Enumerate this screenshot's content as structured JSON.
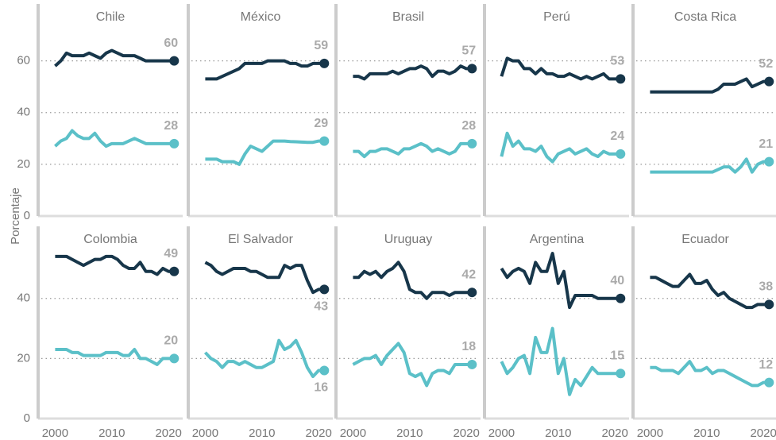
{
  "y_label": "Porcentaje",
  "chart_data": [
    {
      "type": "line",
      "title": "Chile",
      "x": [
        2000,
        2001,
        2002,
        2003,
        2004,
        2005,
        2006,
        2007,
        2008,
        2009,
        2010,
        2011,
        2012,
        2013,
        2014,
        2015,
        2016,
        2017,
        2018,
        2019,
        2020,
        2021
      ],
      "ylim": [
        0,
        82
      ],
      "yticks": [
        0,
        20,
        40,
        60
      ],
      "xlim": [
        1997,
        2022.5
      ],
      "series": [
        {
          "color": "#17364a",
          "values": [
            58,
            60,
            63,
            62,
            62,
            62,
            63,
            62,
            61,
            63,
            64,
            63,
            62,
            62,
            62,
            61,
            60,
            60,
            60,
            60,
            60,
            60
          ]
        },
        {
          "color": "#5bc0c8",
          "values": [
            27,
            29,
            30,
            33,
            31,
            30,
            30,
            32,
            29,
            27,
            28,
            28,
            28,
            29,
            30,
            29,
            28,
            28,
            28,
            28,
            28,
            28
          ]
        }
      ]
    },
    {
      "type": "line",
      "title": "México",
      "x": [
        2000,
        2001,
        2002,
        2003,
        2004,
        2005,
        2006,
        2007,
        2008,
        2009,
        2010,
        2011,
        2012,
        2013,
        2014,
        2015,
        2016,
        2017,
        2018,
        2019,
        2020,
        2021
      ],
      "ylim": [
        0,
        82
      ],
      "yticks": [
        0,
        20,
        40,
        60
      ],
      "xlim": [
        1997,
        2022.5
      ],
      "series": [
        {
          "color": "#17364a",
          "values": [
            53,
            53,
            53,
            54,
            55,
            56,
            57,
            59,
            59,
            59,
            59,
            60,
            60,
            60,
            60,
            59,
            59,
            58,
            58,
            59,
            59,
            59
          ]
        },
        {
          "color": "#5bc0c8",
          "values": [
            22,
            22,
            22,
            21,
            21,
            21,
            20,
            24,
            27,
            26,
            25,
            27,
            29,
            29,
            29,
            28.8,
            28.7,
            28.6,
            28.5,
            28.5,
            29,
            29
          ]
        }
      ]
    },
    {
      "type": "line",
      "title": "Brasil",
      "x": [
        2000,
        2001,
        2002,
        2003,
        2004,
        2005,
        2006,
        2007,
        2008,
        2009,
        2010,
        2011,
        2012,
        2013,
        2014,
        2015,
        2016,
        2017,
        2018,
        2019,
        2020,
        2021
      ],
      "ylim": [
        0,
        82
      ],
      "yticks": [
        0,
        20,
        40,
        60
      ],
      "xlim": [
        1997,
        2022.5
      ],
      "series": [
        {
          "color": "#17364a",
          "values": [
            54,
            54,
            53,
            55,
            55,
            55,
            55,
            56,
            55,
            56,
            57,
            57,
            58,
            57,
            54,
            56,
            56,
            55,
            56,
            58,
            57,
            57
          ]
        },
        {
          "color": "#5bc0c8",
          "values": [
            25,
            25,
            23,
            25,
            25,
            26,
            26,
            25,
            24,
            26,
            26,
            27,
            28,
            27,
            25,
            26,
            25,
            24,
            25,
            28,
            28,
            28
          ]
        }
      ]
    },
    {
      "type": "line",
      "title": "Perú",
      "x": [
        2000,
        2001,
        2002,
        2003,
        2004,
        2005,
        2006,
        2007,
        2008,
        2009,
        2010,
        2011,
        2012,
        2013,
        2014,
        2015,
        2016,
        2017,
        2018,
        2019,
        2020,
        2021
      ],
      "ylim": [
        0,
        82
      ],
      "yticks": [
        0,
        20,
        40,
        60
      ],
      "xlim": [
        1997,
        2022.5
      ],
      "series": [
        {
          "color": "#17364a",
          "values": [
            54,
            61,
            60,
            60,
            57,
            57,
            55,
            57,
            55,
            55,
            54,
            54,
            55,
            54,
            53,
            54,
            53,
            54,
            55,
            53,
            53,
            53
          ]
        },
        {
          "color": "#5bc0c8",
          "values": [
            23,
            32,
            27,
            29,
            26,
            26,
            25,
            27,
            23,
            21,
            24,
            25,
            26,
            24,
            25,
            26,
            24,
            23,
            25,
            24,
            24,
            24
          ]
        }
      ]
    },
    {
      "type": "line",
      "title": "Costa Rica",
      "x": [
        2000,
        2001,
        2002,
        2003,
        2004,
        2005,
        2006,
        2007,
        2008,
        2009,
        2010,
        2011,
        2012,
        2013,
        2014,
        2015,
        2016,
        2017,
        2018,
        2019,
        2020,
        2021
      ],
      "ylim": [
        0,
        82
      ],
      "yticks": [
        0,
        20,
        40,
        60
      ],
      "xlim": [
        1997,
        2022.5
      ],
      "series": [
        {
          "color": "#17364a",
          "values": [
            48,
            48,
            48,
            48,
            48,
            48,
            48,
            48,
            48,
            48,
            48,
            48,
            49,
            51,
            51,
            51,
            52,
            53,
            50,
            51,
            52,
            52
          ]
        },
        {
          "color": "#5bc0c8",
          "values": [
            17,
            17,
            17,
            17,
            17,
            17,
            17,
            17,
            17,
            17,
            17,
            17,
            18,
            19,
            19,
            17,
            19,
            22,
            17,
            20,
            21,
            21
          ]
        }
      ]
    },
    {
      "type": "line",
      "title": "Colombia",
      "x": [
        2000,
        2001,
        2002,
        2003,
        2004,
        2005,
        2006,
        2007,
        2008,
        2009,
        2010,
        2011,
        2012,
        2013,
        2014,
        2015,
        2016,
        2017,
        2018,
        2019,
        2020,
        2021
      ],
      "ylim": [
        0,
        64
      ],
      "yticks": [
        0,
        20,
        40
      ],
      "xlim": [
        1997,
        2022.5
      ],
      "xticks": [
        2000,
        2010,
        2020
      ],
      "series": [
        {
          "color": "#17364a",
          "values": [
            54,
            54,
            54,
            53,
            52,
            51,
            52,
            53,
            53,
            54,
            54,
            53,
            51,
            50,
            50,
            52,
            49,
            49,
            48,
            50,
            49,
            49
          ]
        },
        {
          "color": "#5bc0c8",
          "values": [
            23,
            23,
            23,
            22,
            22,
            21,
            21,
            21,
            21,
            22,
            22,
            22,
            21,
            21,
            23,
            20,
            20,
            19,
            18,
            20,
            20,
            20
          ]
        }
      ]
    },
    {
      "type": "line",
      "title": "El Salvador",
      "x": [
        2000,
        2001,
        2002,
        2003,
        2004,
        2005,
        2006,
        2007,
        2008,
        2009,
        2010,
        2011,
        2012,
        2013,
        2014,
        2015,
        2016,
        2017,
        2018,
        2019,
        2020,
        2021
      ],
      "ylim": [
        0,
        64
      ],
      "yticks": [
        0,
        20,
        40
      ],
      "xlim": [
        1997,
        2022.5
      ],
      "xticks": [
        2000,
        2010,
        2020
      ],
      "series": [
        {
          "color": "#17364a",
          "values": [
            52,
            51,
            49,
            48,
            49,
            50,
            50,
            50,
            49,
            49,
            48,
            47,
            47,
            47,
            51,
            50,
            51,
            51,
            46,
            42,
            43,
            43
          ]
        },
        {
          "color": "#5bc0c8",
          "values": [
            22,
            20,
            19,
            17,
            19,
            19,
            18,
            19,
            18,
            17,
            17,
            18,
            19,
            26,
            23,
            24,
            26,
            22,
            17,
            14,
            16,
            16
          ]
        }
      ]
    },
    {
      "type": "line",
      "title": "Uruguay",
      "x": [
        2000,
        2001,
        2002,
        2003,
        2004,
        2005,
        2006,
        2007,
        2008,
        2009,
        2010,
        2011,
        2012,
        2013,
        2014,
        2015,
        2016,
        2017,
        2018,
        2019,
        2020,
        2021
      ],
      "ylim": [
        0,
        64
      ],
      "yticks": [
        0,
        20,
        40
      ],
      "xlim": [
        1997,
        2022.5
      ],
      "xticks": [
        2000,
        2010,
        2020
      ],
      "series": [
        {
          "color": "#17364a",
          "values": [
            47,
            47,
            49,
            48,
            49,
            47,
            49,
            50,
            52,
            49,
            43,
            42,
            42,
            40,
            42,
            42,
            42,
            41,
            42,
            42,
            42,
            42
          ]
        },
        {
          "color": "#5bc0c8",
          "values": [
            18,
            19,
            20,
            20,
            21,
            18,
            21,
            23,
            25,
            22,
            15,
            14,
            15,
            11,
            15,
            16,
            16,
            15,
            18,
            18,
            18,
            18
          ]
        }
      ]
    },
    {
      "type": "line",
      "title": "Argentina",
      "x": [
        2000,
        2001,
        2002,
        2003,
        2004,
        2005,
        2006,
        2007,
        2008,
        2009,
        2010,
        2011,
        2012,
        2013,
        2014,
        2015,
        2016,
        2017,
        2018,
        2019,
        2020,
        2021
      ],
      "ylim": [
        0,
        64
      ],
      "yticks": [
        0,
        20,
        40
      ],
      "xlim": [
        1997,
        2022.5
      ],
      "xticks": [
        2000,
        2010,
        2020
      ],
      "series": [
        {
          "color": "#17364a",
          "values": [
            50,
            47,
            49,
            50,
            49,
            45,
            52,
            49,
            49,
            55,
            45,
            49,
            37,
            41,
            41,
            41,
            41,
            40,
            40,
            40,
            40,
            40
          ]
        },
        {
          "color": "#5bc0c8",
          "values": [
            19,
            15,
            17,
            20,
            21,
            15,
            27,
            22,
            22,
            30,
            15,
            20,
            8,
            13,
            11,
            14,
            17,
            15,
            15,
            15,
            15,
            15
          ]
        }
      ]
    },
    {
      "type": "line",
      "title": "Ecuador",
      "x": [
        2000,
        2001,
        2002,
        2003,
        2004,
        2005,
        2006,
        2007,
        2008,
        2009,
        2010,
        2011,
        2012,
        2013,
        2014,
        2015,
        2016,
        2017,
        2018,
        2019,
        2020,
        2021
      ],
      "ylim": [
        0,
        64
      ],
      "yticks": [
        0,
        20,
        40
      ],
      "xlim": [
        1997,
        2022.5
      ],
      "xticks": [
        2000,
        2010,
        2020
      ],
      "series": [
        {
          "color": "#17364a",
          "values": [
            47,
            47,
            46,
            45,
            44,
            44,
            46,
            48,
            45,
            45,
            46,
            43,
            41,
            42,
            40,
            39,
            38,
            37,
            37,
            38,
            38,
            38
          ]
        },
        {
          "color": "#5bc0c8",
          "values": [
            17,
            17,
            16,
            16,
            16,
            15,
            17,
            19,
            16,
            16,
            17,
            15,
            16,
            16,
            15,
            14,
            13,
            12,
            11,
            11,
            12,
            12
          ]
        }
      ]
    }
  ]
}
